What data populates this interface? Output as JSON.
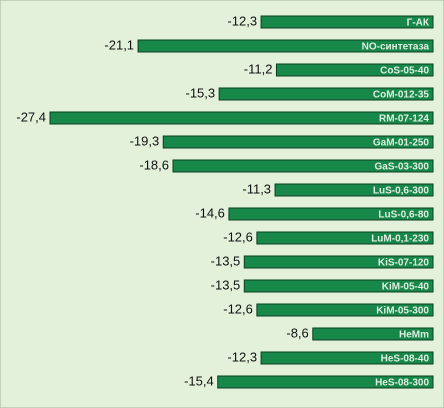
{
  "chart_data": {
    "type": "bar",
    "orientation": "horizontal",
    "color": "#17884a",
    "categories": [
      "Г-АК",
      "NO-синтетаза",
      "CoS-05-40",
      "CoM-012-35",
      "RM-07-124",
      "GaM-01-250",
      "GaS-03-300",
      "LuS-0,6-300",
      "LuS-0,6-80",
      "LuM-0,1-230",
      "KiS-07-120",
      "KiM-05-40",
      "KiM-05-300",
      "HeMm",
      "HeS-08-40",
      "HeS-08-300"
    ],
    "values": [
      -12.3,
      -21.1,
      -11.2,
      -15.3,
      -27.4,
      -19.3,
      -18.6,
      -11.3,
      -14.6,
      -12.6,
      -13.5,
      -13.5,
      -12.6,
      -8.6,
      -12.3,
      -15.4
    ],
    "value_labels": [
      "-12,3",
      "-21,1",
      "-11,2",
      "-15,3",
      "-27,4",
      "-19,3",
      "-18,6",
      "-11,3",
      "-14,6",
      "-12,6",
      "-13,5",
      "-13,5",
      "-12,6",
      "-8,6",
      "-12,3",
      "-15,4"
    ]
  }
}
